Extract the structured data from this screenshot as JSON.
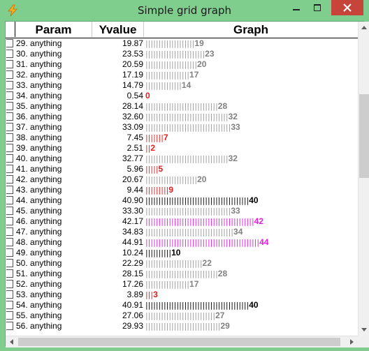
{
  "window": {
    "title": "Simple grid graph",
    "icon": "lightning-app-icon"
  },
  "columns": {
    "param": "Param",
    "yvalue": "Yvalue",
    "graph": "Graph"
  },
  "rows": [
    {
      "param": "29. anything",
      "yvalue": "19.87",
      "bars": "|||||||||||||||||||",
      "label": "19",
      "color": "#808080",
      "barColor": "#9a9a9a"
    },
    {
      "param": "30. anything",
      "yvalue": "23.53",
      "bars": "|||||||||||||||||||||||",
      "label": "23",
      "color": "#808080",
      "barColor": "#9a9a9a"
    },
    {
      "param": "31. anything",
      "yvalue": "20.59",
      "bars": "||||||||||||||||||||",
      "label": "20",
      "color": "#808080",
      "barColor": "#9a9a9a"
    },
    {
      "param": "32. anything",
      "yvalue": "17.19",
      "bars": "|||||||||||||||||",
      "label": "17",
      "color": "#808080",
      "barColor": "#9a9a9a"
    },
    {
      "param": "33. anything",
      "yvalue": "14.79",
      "bars": "||||||||||||||",
      "label": "14",
      "color": "#808080",
      "barColor": "#9a9a9a"
    },
    {
      "param": "34. anything",
      "yvalue": "0.54",
      "bars": "",
      "label": "0",
      "color": "#e02020",
      "barColor": "#e02020"
    },
    {
      "param": "35. anything",
      "yvalue": "28.14",
      "bars": "||||||||||||||||||||||||||||",
      "label": "28",
      "color": "#808080",
      "barColor": "#9a9a9a"
    },
    {
      "param": "36. anything",
      "yvalue": "32.60",
      "bars": "||||||||||||||||||||||||||||||||",
      "label": "32",
      "color": "#808080",
      "barColor": "#9a9a9a"
    },
    {
      "param": "37. anything",
      "yvalue": "33.09",
      "bars": "|||||||||||||||||||||||||||||||||",
      "label": "33",
      "color": "#808080",
      "barColor": "#9a9a9a"
    },
    {
      "param": "38. anything",
      "yvalue": "7.45",
      "bars": "|||||||",
      "label": "7",
      "color": "#e02020",
      "barColor": "#e02020"
    },
    {
      "param": "39. anything",
      "yvalue": "2.51",
      "bars": "||",
      "label": "2",
      "color": "#e02020",
      "barColor": "#e02020"
    },
    {
      "param": "40. anything",
      "yvalue": "32.77",
      "bars": "||||||||||||||||||||||||||||||||",
      "label": "32",
      "color": "#808080",
      "barColor": "#9a9a9a"
    },
    {
      "param": "41. anything",
      "yvalue": "5.96",
      "bars": "|||||",
      "label": "5",
      "color": "#e02020",
      "barColor": "#e02020"
    },
    {
      "param": "42. anything",
      "yvalue": "20.67",
      "bars": "||||||||||||||||||||",
      "label": "20",
      "color": "#808080",
      "barColor": "#9a9a9a"
    },
    {
      "param": "43. anything",
      "yvalue": "9.44",
      "bars": "|||||||||",
      "label": "9",
      "color": "#e02020",
      "barColor": "#e02020"
    },
    {
      "param": "44. anything",
      "yvalue": "40.90",
      "bars": "||||||||||||||||||||||||||||||||||||||||",
      "label": "40",
      "color": "#000000",
      "barColor": "#000000"
    },
    {
      "param": "45. anything",
      "yvalue": "33.30",
      "bars": "|||||||||||||||||||||||||||||||||",
      "label": "33",
      "color": "#808080",
      "barColor": "#9a9a9a"
    },
    {
      "param": "46. anything",
      "yvalue": "42.17",
      "bars": "||||||||||||||||||||||||||||||||||||||||||",
      "label": "42",
      "color": "#e020e0",
      "barColor": "#e020e0"
    },
    {
      "param": "47. anything",
      "yvalue": "34.83",
      "bars": "||||||||||||||||||||||||||||||||||",
      "label": "34",
      "color": "#808080",
      "barColor": "#9a9a9a"
    },
    {
      "param": "48. anything",
      "yvalue": "44.91",
      "bars": "||||||||||||||||||||||||||||||||||||||||||||",
      "label": "44",
      "color": "#e020e0",
      "barColor": "#e020e0"
    },
    {
      "param": "49. anything",
      "yvalue": "10.24",
      "bars": "||||||||||",
      "label": "10",
      "color": "#000000",
      "barColor": "#000000"
    },
    {
      "param": "50. anything",
      "yvalue": "22.29",
      "bars": "||||||||||||||||||||||",
      "label": "22",
      "color": "#808080",
      "barColor": "#9a9a9a"
    },
    {
      "param": "51. anything",
      "yvalue": "28.15",
      "bars": "||||||||||||||||||||||||||||",
      "label": "28",
      "color": "#808080",
      "barColor": "#9a9a9a"
    },
    {
      "param": "52. anything",
      "yvalue": "17.26",
      "bars": "|||||||||||||||||",
      "label": "17",
      "color": "#808080",
      "barColor": "#9a9a9a"
    },
    {
      "param": "53. anything",
      "yvalue": "3.89",
      "bars": "|||",
      "label": "3",
      "color": "#e02020",
      "barColor": "#e02020"
    },
    {
      "param": "54. anything",
      "yvalue": "40.91",
      "bars": "||||||||||||||||||||||||||||||||||||||||",
      "label": "40",
      "color": "#000000",
      "barColor": "#000000"
    },
    {
      "param": "55. anything",
      "yvalue": "27.06",
      "bars": "|||||||||||||||||||||||||||",
      "label": "27",
      "color": "#808080",
      "barColor": "#9a9a9a"
    },
    {
      "param": "56. anything",
      "yvalue": "29.93",
      "bars": "|||||||||||||||||||||||||||||",
      "label": "29",
      "color": "#808080",
      "barColor": "#9a9a9a"
    }
  ],
  "colors": {
    "titlebar": "#7fce8e",
    "close": "#c7443a"
  }
}
